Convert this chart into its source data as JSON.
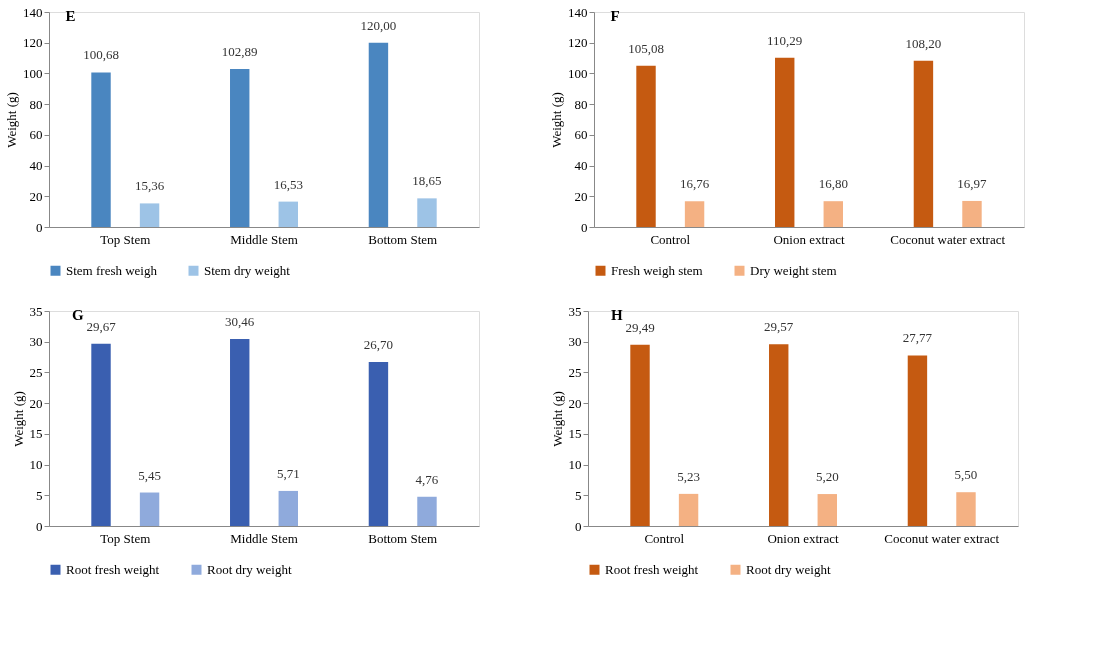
{
  "chart_data": [
    {
      "type": "bar",
      "title": "E",
      "ylabel": "Weight (g)",
      "categories": [
        "Top Stem",
        "Middle Stem",
        "Bottom Stem"
      ],
      "ylim": [
        0,
        140
      ],
      "yticks": [
        0,
        20,
        40,
        60,
        80,
        100,
        120,
        140
      ],
      "legend": "bottom",
      "series": [
        {
          "name": "Stem fresh weigh",
          "color": "#4a86c0",
          "values": [
            100.68,
            102.89,
            120.0
          ],
          "value_labels": [
            "100,68",
            "102,89",
            "120,00"
          ]
        },
        {
          "name": "Stem dry weight",
          "color": "#9dc3e6",
          "values": [
            15.36,
            16.53,
            18.65
          ],
          "value_labels": [
            "15,36",
            "16,53",
            "18,65"
          ]
        }
      ]
    },
    {
      "type": "bar",
      "title": "F",
      "ylabel": "Weight (g)",
      "categories": [
        "Control",
        "Onion extract",
        "Coconut water extract"
      ],
      "ylim": [
        0,
        140
      ],
      "yticks": [
        0,
        20,
        40,
        60,
        80,
        100,
        120,
        140
      ],
      "legend": "bottom",
      "series": [
        {
          "name": "Fresh weigh stem",
          "color": "#c55a11",
          "values": [
            105.08,
            110.29,
            108.2
          ],
          "value_labels": [
            "105,08",
            "110,29",
            "108,20"
          ]
        },
        {
          "name": "Dry weight stem",
          "color": "#f4b183",
          "values": [
            16.76,
            16.8,
            16.97
          ],
          "value_labels": [
            "16,76",
            "16,80",
            "16,97"
          ]
        }
      ]
    },
    {
      "type": "bar",
      "title": "G",
      "ylabel": "Weight (g)",
      "categories": [
        "Top Stem",
        "Middle Stem",
        "Bottom Stem"
      ],
      "ylim": [
        0,
        35
      ],
      "yticks": [
        0,
        5,
        10,
        15,
        20,
        25,
        30,
        35
      ],
      "legend": "bottom",
      "series": [
        {
          "name": "Root fresh weight",
          "color": "#3a5fb0",
          "values": [
            29.67,
            30.46,
            26.7
          ],
          "value_labels": [
            "29,67",
            "30,46",
            "26,70"
          ]
        },
        {
          "name": "Root dry weight",
          "color": "#8faadc",
          "values": [
            5.45,
            5.71,
            4.76
          ],
          "value_labels": [
            "5,45",
            "5,71",
            "4,76"
          ]
        }
      ]
    },
    {
      "type": "bar",
      "title": "H",
      "ylabel": "Weight (g)",
      "categories": [
        "Control",
        "Onion extract",
        "Coconut water extract"
      ],
      "ylim": [
        0,
        35
      ],
      "yticks": [
        0,
        5,
        10,
        15,
        20,
        25,
        30,
        35
      ],
      "legend": "bottom",
      "series": [
        {
          "name": "Root fresh weight",
          "color": "#c55a11",
          "values": [
            29.49,
            29.57,
            27.77
          ],
          "value_labels": [
            "29,49",
            "29,57",
            "27,77"
          ]
        },
        {
          "name": "Root dry weight",
          "color": "#f4b183",
          "values": [
            5.23,
            5.2,
            5.5
          ],
          "value_labels": [
            "5,23",
            "5,20",
            "5,50"
          ]
        }
      ]
    }
  ]
}
